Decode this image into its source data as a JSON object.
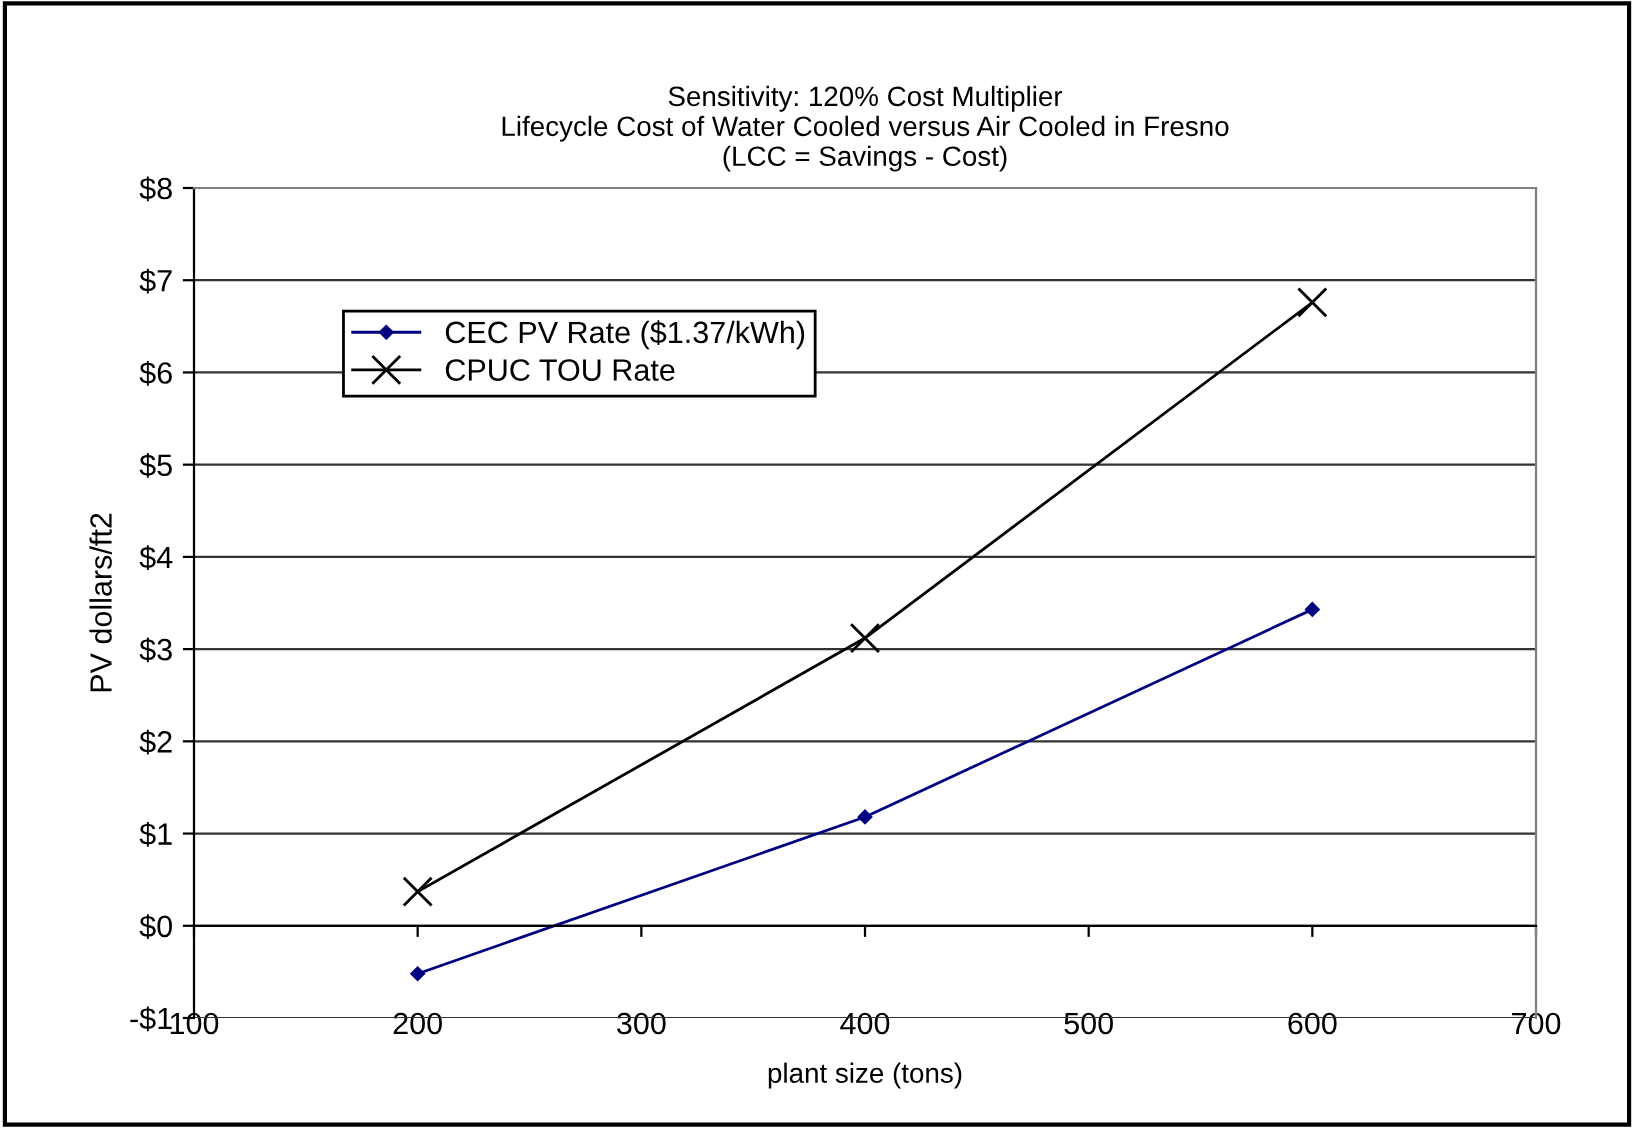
{
  "chart_data": {
    "type": "line",
    "title": "Sensitivity: 120% Cost Multiplier\nLifecycle Cost of Water Cooled versus Air Cooled in Fresno\n(LCC = Savings - Cost)",
    "xlabel": "plant size (tons)",
    "ylabel": "PV dollars/ft2",
    "x": [
      200,
      400,
      600
    ],
    "series": [
      {
        "name": "CEC PV Rate ($1.37/kWh)",
        "color": "#000080",
        "values": [
          -0.52,
          1.18,
          3.43
        ],
        "marker": "diamond"
      },
      {
        "name": "CPUC TOU Rate",
        "color": "#000000",
        "values": [
          0.37,
          3.12,
          6.76
        ],
        "marker": "cross"
      }
    ],
    "xlim": [
      100,
      700
    ],
    "xticks": [
      100,
      200,
      300,
      400,
      500,
      600,
      700
    ],
    "ylim": [
      -1,
      8
    ],
    "yticks": [
      {
        "value": -1,
        "label": "-$1"
      },
      {
        "value": 0,
        "label": "$0"
      },
      {
        "value": 1,
        "label": "$1"
      },
      {
        "value": 2,
        "label": "$2"
      },
      {
        "value": 3,
        "label": "$3"
      },
      {
        "value": 4,
        "label": "$4"
      },
      {
        "value": 5,
        "label": "$5"
      },
      {
        "value": 6,
        "label": "$6"
      },
      {
        "value": 7,
        "label": "$7"
      },
      {
        "value": 8,
        "label": "$8"
      }
    ],
    "grid": "y",
    "legend": "top left",
    "line_style": "solid"
  }
}
